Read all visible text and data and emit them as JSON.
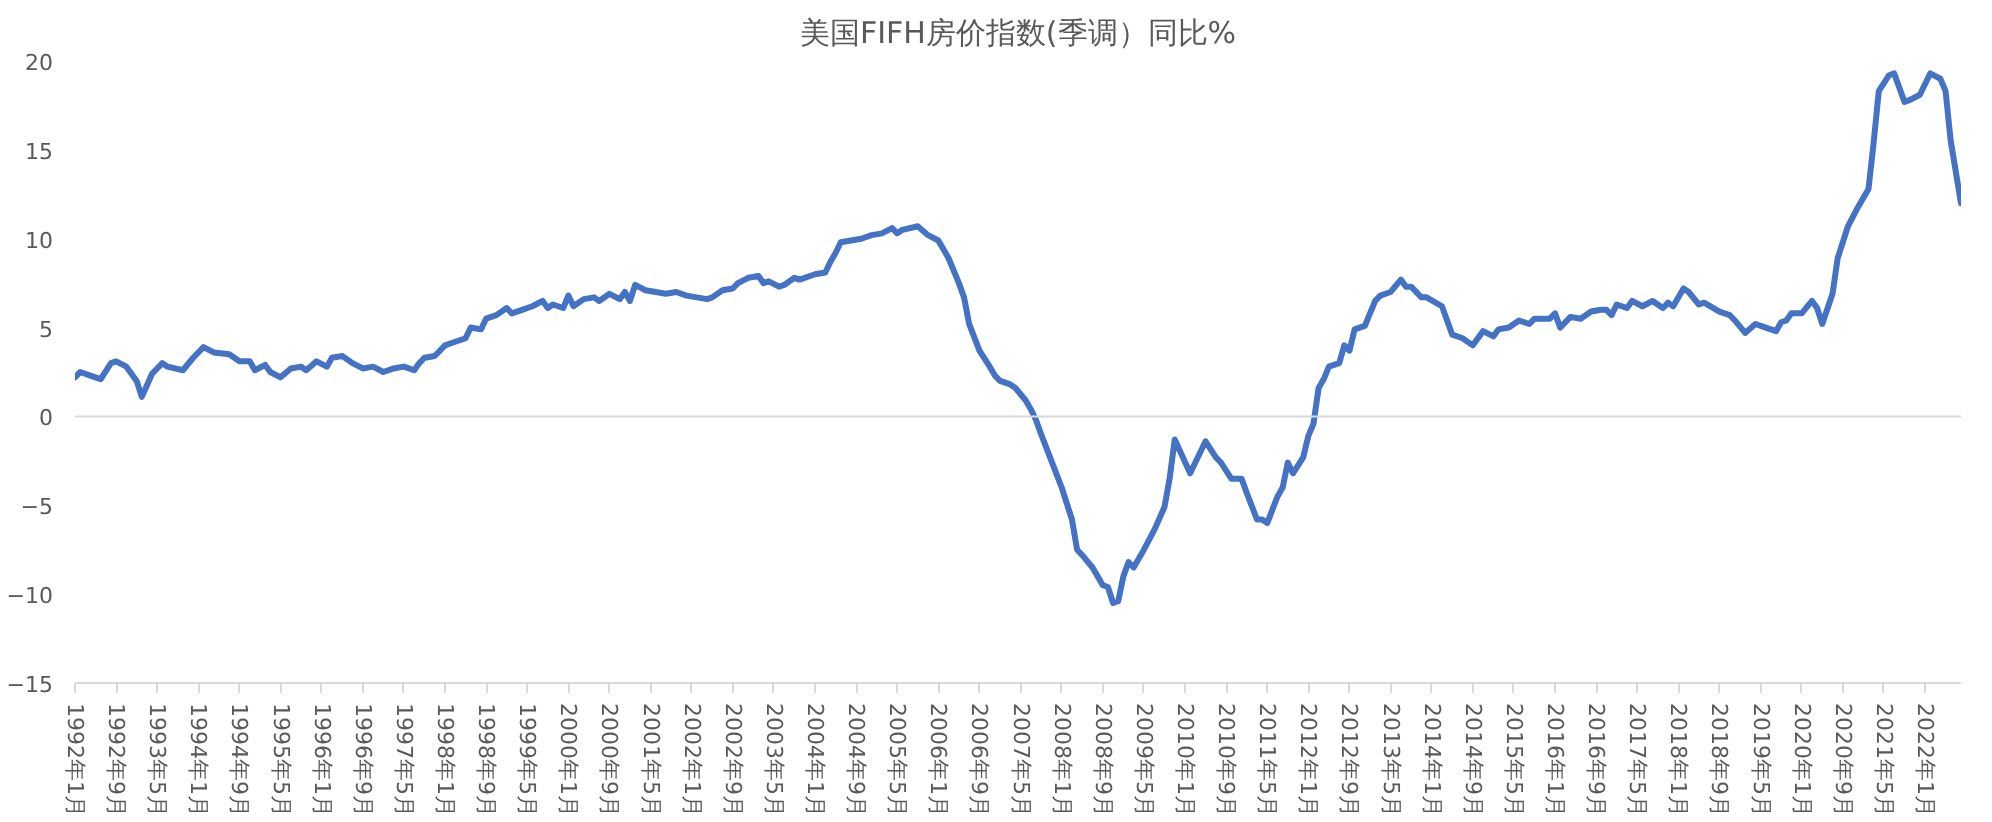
{
  "chart_data": {
    "type": "line",
    "title": "美国FIFH房价指数(季调）同比%",
    "color": "#4472c4",
    "line_style": "solid",
    "grid": false,
    "x": [
      "1992-01",
      "1992-02",
      "1992-04",
      "1992-06",
      "1992-08",
      "1992-09",
      "1992-11",
      "1993-01",
      "1993-02",
      "1993-04",
      "1993-06",
      "1993-07",
      "1993-10",
      "1993-12",
      "1994-02",
      "1994-04",
      "1994-07",
      "1994-09",
      "1994-11",
      "1994-12",
      "1995-02",
      "1995-03",
      "1995-05",
      "1995-07",
      "1995-09",
      "1995-10",
      "1995-12",
      "1996-02",
      "1996-03",
      "1996-05",
      "1996-07",
      "1996-09",
      "1996-11",
      "1997-01",
      "1997-03",
      "1997-05",
      "1997-07",
      "1997-08",
      "1997-09",
      "1997-11",
      "1998-01",
      "1998-03",
      "1998-05",
      "1998-06",
      "1998-08",
      "1998-09",
      "1998-11",
      "1999-01",
      "1999-02",
      "1999-04",
      "1999-06",
      "1999-08",
      "1999-09",
      "1999-10",
      "1999-12",
      "2000-01",
      "2000-02",
      "2000-04",
      "2000-06",
      "2000-07",
      "2000-09",
      "2000-11",
      "2000-12",
      "2001-01",
      "2001-02",
      "2001-04",
      "2001-06",
      "2001-08",
      "2001-10",
      "2001-12",
      "2002-02",
      "2002-04",
      "2002-05",
      "2002-07",
      "2002-09",
      "2002-10",
      "2002-12",
      "2003-02",
      "2003-03",
      "2003-04",
      "2003-06",
      "2003-07",
      "2003-09",
      "2003-10",
      "2004-01",
      "2004-03",
      "2004-04",
      "2004-05",
      "2004-06",
      "2004-08",
      "2004-10",
      "2004-12",
      "2005-02",
      "2005-04",
      "2005-05",
      "2005-06",
      "2005-09",
      "2005-11",
      "2006-01",
      "2006-03",
      "2006-05",
      "2006-06",
      "2006-07",
      "2006-09",
      "2006-11",
      "2006-12",
      "2007-01",
      "2007-03",
      "2007-04",
      "2007-06",
      "2007-07",
      "2007-08",
      "2007-09",
      "2007-11",
      "2008-01",
      "2008-03",
      "2008-04",
      "2008-05",
      "2008-07",
      "2008-09",
      "2008-10",
      "2008-11",
      "2008-12",
      "2009-01",
      "2009-02",
      "2009-03",
      "2009-05",
      "2009-07",
      "2009-09",
      "2009-10",
      "2009-11",
      "2010-02",
      "2010-05",
      "2010-07",
      "2010-08",
      "2010-10",
      "2010-12",
      "2011-01",
      "2011-03",
      "2011-04",
      "2011-05",
      "2011-07",
      "2011-08",
      "2011-09",
      "2011-10",
      "2011-12",
      "2012-01",
      "2012-02",
      "2012-03",
      "2012-04",
      "2012-05",
      "2012-07",
      "2012-08",
      "2012-09",
      "2012-10",
      "2012-12",
      "2013-02",
      "2013-03",
      "2013-05",
      "2013-07",
      "2013-08",
      "2013-09",
      "2013-11",
      "2013-12",
      "2014-03",
      "2014-04",
      "2014-05",
      "2014-07",
      "2014-09",
      "2014-11",
      "2015-01",
      "2015-02",
      "2015-04",
      "2015-06",
      "2015-08",
      "2015-09",
      "2015-12",
      "2016-01",
      "2016-02",
      "2016-04",
      "2016-06",
      "2016-08",
      "2016-10",
      "2016-11",
      "2016-12",
      "2017-01",
      "2017-03",
      "2017-04",
      "2017-06",
      "2017-08",
      "2017-10",
      "2017-11",
      "2017-12",
      "2018-02",
      "2018-03",
      "2018-05",
      "2018-06",
      "2018-09",
      "2018-11",
      "2018-12",
      "2019-02",
      "2019-04",
      "2019-06",
      "2019-08",
      "2019-09",
      "2019-10",
      "2019-11",
      "2020-01",
      "2020-03",
      "2020-04",
      "2020-05",
      "2020-07",
      "2020-08",
      "2020-10",
      "2020-12",
      "2021-02",
      "2021-03",
      "2021-04",
      "2021-06",
      "2021-07",
      "2021-09",
      "2021-10",
      "2021-12",
      "2022-02",
      "2022-04",
      "2022-05",
      "2022-06",
      "2022-08"
    ],
    "values": [
      2.2,
      2.5,
      2.3,
      2.1,
      3.0,
      3.1,
      2.8,
      2.0,
      1.1,
      2.4,
      3.0,
      2.8,
      2.6,
      3.3,
      3.9,
      3.6,
      3.5,
      3.1,
      3.1,
      2.6,
      2.9,
      2.5,
      2.2,
      2.7,
      2.8,
      2.6,
      3.1,
      2.8,
      3.3,
      3.4,
      3.0,
      2.7,
      2.8,
      2.5,
      2.7,
      2.8,
      2.6,
      3.0,
      3.3,
      3.4,
      4.0,
      4.2,
      4.4,
      5.0,
      4.9,
      5.5,
      5.7,
      6.1,
      5.8,
      6.0,
      6.2,
      6.5,
      6.1,
      6.3,
      6.1,
      6.8,
      6.2,
      6.6,
      6.7,
      6.5,
      6.9,
      6.6,
      7.0,
      6.5,
      7.4,
      7.1,
      7.0,
      6.9,
      7.0,
      6.8,
      6.7,
      6.6,
      6.7,
      7.1,
      7.2,
      7.5,
      7.8,
      7.9,
      7.5,
      7.6,
      7.3,
      7.4,
      7.8,
      7.7,
      8.0,
      8.1,
      8.7,
      9.2,
      9.8,
      9.9,
      10.0,
      10.2,
      10.3,
      10.6,
      10.3,
      10.5,
      10.7,
      10.2,
      9.9,
      8.9,
      7.5,
      6.7,
      5.2,
      3.7,
      2.8,
      2.3,
      2.0,
      1.8,
      1.6,
      0.9,
      0.4,
      -0.2,
      -1.0,
      -2.5,
      -4.0,
      -5.8,
      -7.5,
      -7.8,
      -8.5,
      -9.5,
      -9.6,
      -10.5,
      -10.4,
      -9.0,
      -8.2,
      -8.5,
      -7.5,
      -6.4,
      -5.1,
      -3.5,
      -1.3,
      -3.2,
      -1.4,
      -2.3,
      -2.6,
      -3.5,
      -3.5,
      -4.3,
      -5.8,
      -5.8,
      -6.0,
      -4.5,
      -4.0,
      -2.6,
      -3.2,
      -2.3,
      -1.1,
      -0.4,
      1.6,
      2.1,
      2.8,
      3.0,
      4.0,
      3.7,
      4.9,
      5.1,
      6.5,
      6.8,
      7.0,
      7.7,
      7.3,
      7.3,
      6.7,
      6.7,
      6.2,
      5.4,
      4.6,
      4.4,
      4.0,
      4.8,
      4.5,
      4.9,
      5.0,
      5.4,
      5.2,
      5.5,
      5.5,
      5.8,
      5.0,
      5.6,
      5.5,
      5.9,
      6.0,
      6.0,
      5.7,
      6.3,
      6.1,
      6.5,
      6.2,
      6.5,
      6.1,
      6.4,
      6.2,
      7.2,
      7.0,
      6.3,
      6.4,
      5.9,
      5.7,
      5.4,
      4.7,
      5.2,
      5.0,
      4.8,
      5.3,
      5.4,
      5.8,
      5.8,
      6.5,
      6.1,
      5.2,
      6.9,
      8.9,
      10.7,
      11.8,
      12.8,
      15.4,
      18.3,
      19.2,
      19.3,
      17.7,
      17.8,
      18.1,
      19.3,
      19.0,
      18.3,
      15.5,
      12.0
    ],
    "xlim": [
      "1992-01",
      "2022-08"
    ],
    "xticks": [
      {
        "value": "1992-01",
        "label": "1992年1月"
      },
      {
        "value": "1992-09",
        "label": "1992年9月"
      },
      {
        "value": "1993-05",
        "label": "1993年5月"
      },
      {
        "value": "1994-01",
        "label": "1994年1月"
      },
      {
        "value": "1994-09",
        "label": "1994年9月"
      },
      {
        "value": "1995-05",
        "label": "1995年5月"
      },
      {
        "value": "1996-01",
        "label": "1996年1月"
      },
      {
        "value": "1996-09",
        "label": "1996年9月"
      },
      {
        "value": "1997-05",
        "label": "1997年5月"
      },
      {
        "value": "1998-01",
        "label": "1998年1月"
      },
      {
        "value": "1998-09",
        "label": "1998年9月"
      },
      {
        "value": "1999-05",
        "label": "1999年5月"
      },
      {
        "value": "2000-01",
        "label": "2000年1月"
      },
      {
        "value": "2000-09",
        "label": "2000年9月"
      },
      {
        "value": "2001-05",
        "label": "2001年5月"
      },
      {
        "value": "2002-01",
        "label": "2002年1月"
      },
      {
        "value": "2002-09",
        "label": "2002年9月"
      },
      {
        "value": "2003-05",
        "label": "2003年5月"
      },
      {
        "value": "2004-01",
        "label": "2004年1月"
      },
      {
        "value": "2004-09",
        "label": "2004年9月"
      },
      {
        "value": "2005-05",
        "label": "2005年5月"
      },
      {
        "value": "2006-01",
        "label": "2006年1月"
      },
      {
        "value": "2006-09",
        "label": "2006年9月"
      },
      {
        "value": "2007-05",
        "label": "2007年5月"
      },
      {
        "value": "2008-01",
        "label": "2008年1月"
      },
      {
        "value": "2008-09",
        "label": "2008年9月"
      },
      {
        "value": "2009-05",
        "label": "2009年5月"
      },
      {
        "value": "2010-01",
        "label": "2010年1月"
      },
      {
        "value": "2010-09",
        "label": "2010年9月"
      },
      {
        "value": "2011-05",
        "label": "2011年5月"
      },
      {
        "value": "2012-01",
        "label": "2012年1月"
      },
      {
        "value": "2012-09",
        "label": "2012年9月"
      },
      {
        "value": "2013-05",
        "label": "2013年5月"
      },
      {
        "value": "2014-01",
        "label": "2014年1月"
      },
      {
        "value": "2014-09",
        "label": "2014年9月"
      },
      {
        "value": "2015-05",
        "label": "2015年5月"
      },
      {
        "value": "2016-01",
        "label": "2016年1月"
      },
      {
        "value": "2016-09",
        "label": "2016年9月"
      },
      {
        "value": "2017-05",
        "label": "2017年5月"
      },
      {
        "value": "2018-01",
        "label": "2018年1月"
      },
      {
        "value": "2018-09",
        "label": "2018年9月"
      },
      {
        "value": "2019-05",
        "label": "2019年5月"
      },
      {
        "value": "2020-01",
        "label": "2020年1月"
      },
      {
        "value": "2020-09",
        "label": "2020年9月"
      },
      {
        "value": "2021-05",
        "label": "2021年5月"
      },
      {
        "value": "2022-01",
        "label": "2022年1月"
      }
    ],
    "ylim": [
      -15,
      20
    ],
    "yticks": [
      -15,
      -10,
      -5,
      0,
      5,
      10,
      15,
      20
    ],
    "ref_lines": [
      {
        "axis": "y",
        "value": 0,
        "color": "#d9d9d9"
      }
    ]
  }
}
